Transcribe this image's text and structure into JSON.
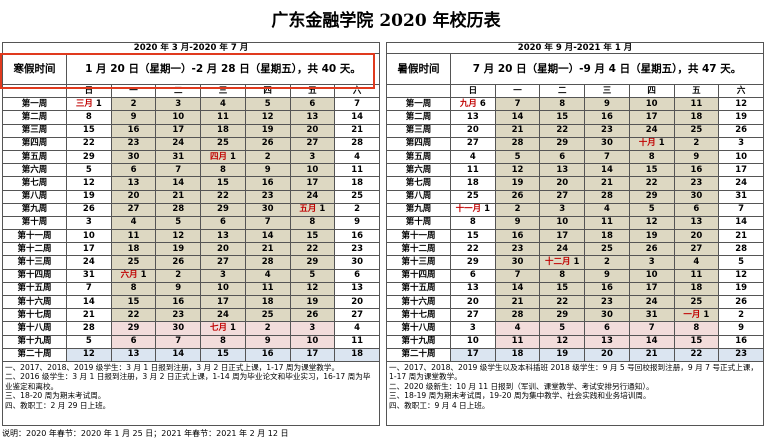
{
  "title": "广东金融学院 2020 年校历表",
  "calendars": [
    {
      "period": "2020 年 3 月-2020 年 7 月",
      "holiday_label": "寒假时间",
      "holiday_text": "1 月 20 日（星期一）-2 月 28 日（星期五），共 40 天。",
      "weekdays": [
        "日",
        "一",
        "二",
        "三",
        "四",
        "五",
        "六"
      ],
      "rows": [
        {
          "week": "第一周",
          "days": [
            {
              "month": "三月",
              "day": "1"
            },
            "2",
            "3",
            "4",
            "5",
            "6",
            "7"
          ]
        },
        {
          "week": "第二周",
          "days": [
            "8",
            "9",
            "10",
            "11",
            "12",
            "13",
            "14"
          ]
        },
        {
          "week": "第三周",
          "days": [
            "15",
            "16",
            "17",
            "18",
            "19",
            "20",
            "21"
          ]
        },
        {
          "week": "第四周",
          "days": [
            "22",
            "23",
            "24",
            "25",
            "26",
            "27",
            "28"
          ]
        },
        {
          "week": "第五周",
          "days": [
            "29",
            "30",
            "31",
            {
              "month": "四月",
              "day": "1"
            },
            "2",
            "3",
            "4"
          ]
        },
        {
          "week": "第六周",
          "days": [
            "5",
            "6",
            "7",
            "8",
            "9",
            "10",
            "11"
          ]
        },
        {
          "week": "第七周",
          "days": [
            "12",
            "13",
            "14",
            "15",
            "16",
            "17",
            "18"
          ]
        },
        {
          "week": "第八周",
          "days": [
            "19",
            "20",
            "21",
            "22",
            "23",
            "24",
            "25"
          ]
        },
        {
          "week": "第九周",
          "days": [
            "26",
            "27",
            "28",
            "29",
            "30",
            {
              "month": "五月",
              "day": "1"
            },
            "2"
          ]
        },
        {
          "week": "第十周",
          "days": [
            "3",
            "4",
            "5",
            "6",
            "7",
            "8",
            "9"
          ]
        },
        {
          "week": "第十一周",
          "days": [
            "10",
            "11",
            "12",
            "13",
            "14",
            "15",
            "16"
          ]
        },
        {
          "week": "第十二周",
          "days": [
            "17",
            "18",
            "19",
            "20",
            "21",
            "22",
            "23"
          ]
        },
        {
          "week": "第十三周",
          "days": [
            "24",
            "25",
            "26",
            "27",
            "28",
            "29",
            "30"
          ]
        },
        {
          "week": "第十四周",
          "days": [
            "31",
            {
              "month": "六月",
              "day": "1"
            },
            "2",
            "3",
            "4",
            "5",
            "6"
          ]
        },
        {
          "week": "第十五周",
          "days": [
            "7",
            "8",
            "9",
            "10",
            "11",
            "12",
            "13"
          ]
        },
        {
          "week": "第十六周",
          "days": [
            "14",
            "15",
            "16",
            "17",
            "18",
            "19",
            "20"
          ]
        },
        {
          "week": "第十七周",
          "days": [
            "21",
            "22",
            "23",
            "24",
            "25",
            "26",
            "27"
          ]
        },
        {
          "week": "第十八周",
          "days": [
            "28",
            "29",
            "30",
            {
              "month": "七月",
              "day": "1"
            },
            "2",
            "3",
            "4"
          ]
        },
        {
          "week": "第十九周",
          "days": [
            "5",
            "6",
            "7",
            "8",
            "9",
            "10",
            "11"
          ]
        },
        {
          "week": "第二十周",
          "days": [
            "12",
            "13",
            "14",
            "15",
            "16",
            "17",
            "18"
          ]
        }
      ],
      "notes": [
        "一、2017、2018、2019 级学生：3 月 1 日报到注册，3 月 2 日正式上课，1-17 周为课堂教学。",
        "二、2016 级学生：3 月 1 日报到注册，3 月 2 日正式上课，1-14 周为毕业论文和毕业实习，16-17 周为毕业鉴定和离校。",
        "三、18-20 周为期末考试周。",
        "四、教职工：2 月 29 日上班。"
      ]
    },
    {
      "period": "2020 年 9 月-2021 年 1 月",
      "holiday_label": "暑假时间",
      "holiday_text": "7 月 20 日（星期一）-9 月 4 日（星期五），共 47 天。",
      "weekdays": [
        "日",
        "一",
        "二",
        "三",
        "四",
        "五",
        "六"
      ],
      "rows": [
        {
          "week": "第一周",
          "days": [
            {
              "month": "九月",
              "day": "6"
            },
            "7",
            "8",
            "9",
            "10",
            "11",
            "12"
          ]
        },
        {
          "week": "第二周",
          "days": [
            "13",
            "14",
            "15",
            "16",
            "17",
            "18",
            "19"
          ]
        },
        {
          "week": "第三周",
          "days": [
            "20",
            "21",
            "22",
            "23",
            "24",
            "25",
            "26"
          ]
        },
        {
          "week": "第四周",
          "days": [
            "27",
            "28",
            "29",
            "30",
            {
              "month": "十月",
              "day": "1"
            },
            "2",
            "3"
          ]
        },
        {
          "week": "第五周",
          "days": [
            "4",
            "5",
            "6",
            "7",
            "8",
            "9",
            "10"
          ]
        },
        {
          "week": "第六周",
          "days": [
            "11",
            "12",
            "13",
            "14",
            "15",
            "16",
            "17"
          ]
        },
        {
          "week": "第七周",
          "days": [
            "18",
            "19",
            "20",
            "21",
            "22",
            "23",
            "24"
          ]
        },
        {
          "week": "第八周",
          "days": [
            "25",
            "26",
            "27",
            "28",
            "29",
            "30",
            "31"
          ]
        },
        {
          "week": "第九周",
          "days": [
            {
              "month": "十一月",
              "day": "1"
            },
            "2",
            "3",
            "4",
            "5",
            "6",
            "7"
          ]
        },
        {
          "week": "第十周",
          "days": [
            "8",
            "9",
            "10",
            "11",
            "12",
            "13",
            "14"
          ]
        },
        {
          "week": "第十一周",
          "days": [
            "15",
            "16",
            "17",
            "18",
            "19",
            "20",
            "21"
          ]
        },
        {
          "week": "第十二周",
          "days": [
            "22",
            "23",
            "24",
            "25",
            "26",
            "27",
            "28"
          ]
        },
        {
          "week": "第十三周",
          "days": [
            "29",
            "30",
            {
              "month": "十二月",
              "day": "1"
            },
            "2",
            "3",
            "4",
            "5"
          ]
        },
        {
          "week": "第十四周",
          "days": [
            "6",
            "7",
            "8",
            "9",
            "10",
            "11",
            "12"
          ]
        },
        {
          "week": "第十五周",
          "days": [
            "13",
            "14",
            "15",
            "16",
            "17",
            "18",
            "19"
          ]
        },
        {
          "week": "第十六周",
          "days": [
            "20",
            "21",
            "22",
            "23",
            "24",
            "25",
            "26"
          ]
        },
        {
          "week": "第十七周",
          "days": [
            "27",
            "28",
            "29",
            "30",
            "31",
            {
              "month": "一月",
              "day": "1"
            },
            "2"
          ]
        },
        {
          "week": "第十八周",
          "days": [
            "3",
            "4",
            "5",
            "6",
            "7",
            "8",
            "9"
          ]
        },
        {
          "week": "第十九周",
          "days": [
            "10",
            "11",
            "12",
            "13",
            "14",
            "15",
            "16"
          ]
        },
        {
          "week": "第二十周",
          "days": [
            "17",
            "18",
            "19",
            "20",
            "21",
            "22",
            "23"
          ]
        }
      ],
      "notes": [
        "一、2017、2018、2019 级学生以及本科插班 2018 级学生：9 月 5 号回校报到注册，9 月 7 号正式上课，1-17 周为课堂教学。",
        "二、2020 级新生：10 月 11 日报到（军训、课堂教学、考试安排另行通知）。",
        "三、18-19 周为期末考试周，19-20 周为集中教学、社会实践和业务培训周。",
        "四、教职工：9 月 4 日上班。"
      ]
    }
  ],
  "footer": "说明：2020 年春节：2020 年 1 月 25 日；2021 年春节：2021 年 2 月 12 日"
}
